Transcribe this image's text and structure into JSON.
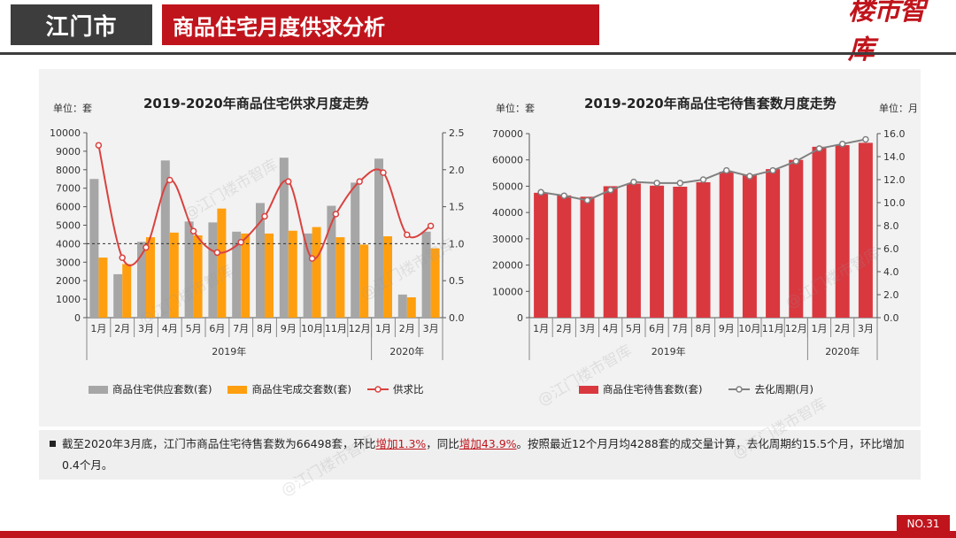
{
  "header": {
    "city": "江门市",
    "title": "商品住宅月度供求分析",
    "brand_text": "楼市智库"
  },
  "watermark": "@江门楼市智库",
  "left_chart": {
    "title": "2019-2020年商品住宅供求月度走势",
    "unit_left": "单位：套"
  },
  "right_chart": {
    "title": "2019-2020年商品住宅待售套数月度走势",
    "unit_left": "单位：套",
    "unit_right": "单位：月"
  },
  "chart_data": [
    {
      "type": "bar",
      "title": "2019-2020年商品住宅供求月度走势",
      "categories": [
        "1月",
        "2月",
        "3月",
        "4月",
        "5月",
        "6月",
        "7月",
        "8月",
        "9月",
        "10月",
        "11月",
        "12月",
        "1月",
        "2月",
        "3月"
      ],
      "year_groups": [
        {
          "label": "2019年",
          "count": 12
        },
        {
          "label": "2020年",
          "count": 3
        }
      ],
      "ylim": [
        0,
        10000
      ],
      "yticks": [
        0,
        1000,
        2000,
        3000,
        4000,
        5000,
        6000,
        7000,
        8000,
        9000,
        10000
      ],
      "y2lim": [
        0,
        2.5
      ],
      "y2ticks": [
        "0.0",
        "0.5",
        "1.0",
        "1.5",
        "2.0",
        "2.5"
      ],
      "reference_line": 1.0,
      "series": [
        {
          "name": "商品住宅供应套数(套)",
          "kind": "bar",
          "color": "#a6a6a6",
          "values": [
            7500,
            2350,
            4100,
            8500,
            5200,
            5150,
            4650,
            6200,
            8650,
            4550,
            6050,
            7300,
            8600,
            1250,
            4650
          ]
        },
        {
          "name": "商品住宅成交套数(套)",
          "kind": "bar",
          "color": "#ff9f0f",
          "values": [
            3250,
            2900,
            4350,
            4600,
            4450,
            5900,
            4550,
            4550,
            4700,
            4900,
            4350,
            3950,
            4400,
            1100,
            3750
          ]
        },
        {
          "name": "供求比",
          "kind": "line",
          "axis": "right",
          "color": "#d9423f",
          "values": [
            2.33,
            0.81,
            0.95,
            1.86,
            1.17,
            0.88,
            1.02,
            1.37,
            1.84,
            0.8,
            1.4,
            1.84,
            1.96,
            1.12,
            1.24
          ]
        }
      ]
    },
    {
      "type": "bar",
      "title": "2019-2020年商品住宅待售套数月度走势",
      "categories": [
        "1月",
        "2月",
        "3月",
        "4月",
        "5月",
        "6月",
        "7月",
        "8月",
        "9月",
        "10月",
        "11月",
        "12月",
        "1月",
        "2月",
        "3月"
      ],
      "year_groups": [
        {
          "label": "2019年",
          "count": 12
        },
        {
          "label": "2020年",
          "count": 3
        }
      ],
      "ylim": [
        0,
        70000
      ],
      "yticks": [
        0,
        10000,
        20000,
        30000,
        40000,
        50000,
        60000,
        70000
      ],
      "y2lim": [
        0,
        16
      ],
      "y2ticks": [
        "0.0",
        "2.0",
        "4.0",
        "6.0",
        "8.0",
        "10.0",
        "12.0",
        "14.0",
        "16.0"
      ],
      "series": [
        {
          "name": "商品住宅待售套数(套)",
          "kind": "bar",
          "color": "#d9383f",
          "values": [
            47500,
            46500,
            46000,
            50000,
            51000,
            50200,
            49800,
            51500,
            55500,
            54500,
            56500,
            60000,
            65000,
            65600,
            66498
          ]
        },
        {
          "name": "去化周期(月)",
          "kind": "line",
          "axis": "right",
          "color": "#808080",
          "values": [
            10.9,
            10.6,
            10.2,
            11.1,
            11.8,
            11.7,
            11.7,
            12.0,
            12.8,
            12.3,
            12.8,
            13.6,
            14.7,
            15.1,
            15.5
          ]
        }
      ]
    }
  ],
  "summary": {
    "part1": "截至2020年3月底，江门市商品住宅待售套数为66498套，环比",
    "hl1": "增加1.3%",
    "part2": "，同比",
    "hl2": "增加43.9%",
    "part3": "。按照最近12个月月均4288套的成交量计算，去化周期约15.5个月，环比增加0.4个月。"
  },
  "footer": {
    "page_number": "NO.31"
  },
  "colors": {
    "brand_red": "#c0141c",
    "dark_gray": "#3d3d3d"
  }
}
